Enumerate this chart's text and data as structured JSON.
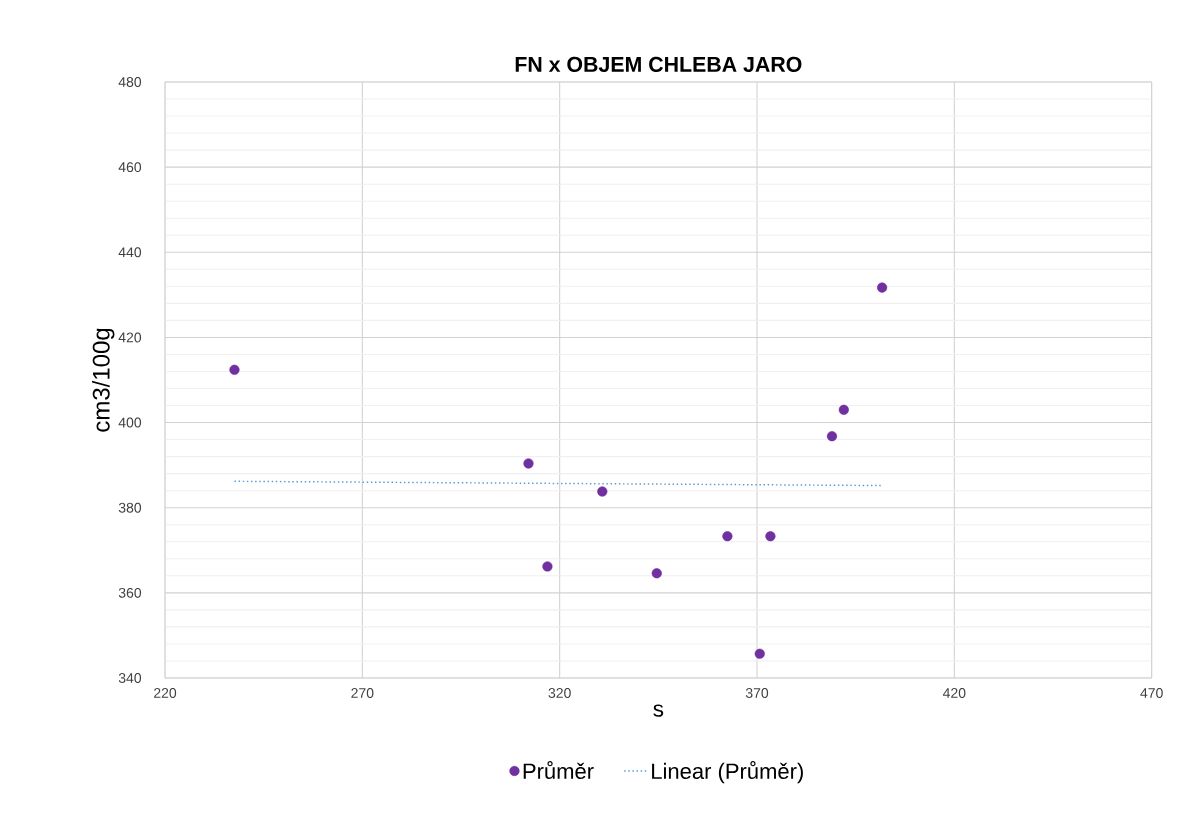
{
  "chart_data": {
    "type": "scatter",
    "title": "FN x OBJEM CHLEBA JARO",
    "xlabel": "s",
    "ylabel": "cm3/100g",
    "xlim": [
      220,
      470
    ],
    "xticks": [
      220,
      270,
      320,
      370,
      420,
      470
    ],
    "ylim": [
      340,
      480
    ],
    "yticks": [
      340,
      360,
      380,
      400,
      420,
      440,
      460,
      480
    ],
    "grid": true,
    "legend": "bottom",
    "series": [
      {
        "name": "Průměr",
        "marker": "circle",
        "color": "#7030a0",
        "x": [
          237.6,
          312.1,
          316.9,
          330.8,
          344.6,
          362.5,
          373.4,
          370.7,
          389.0,
          392.0,
          401.7
        ],
        "values": [
          412.4,
          390.4,
          366.2,
          383.8,
          364.6,
          373.3,
          373.3,
          345.7,
          396.8,
          403.0,
          431.7
        ]
      },
      {
        "name": "Linear (Průměr)",
        "type": "line",
        "marker": "none",
        "line_style": "dotted",
        "color": "#5b9bd5",
        "x": [
          237.6,
          401.7
        ],
        "values": [
          386.2,
          385.2
        ]
      }
    ]
  }
}
